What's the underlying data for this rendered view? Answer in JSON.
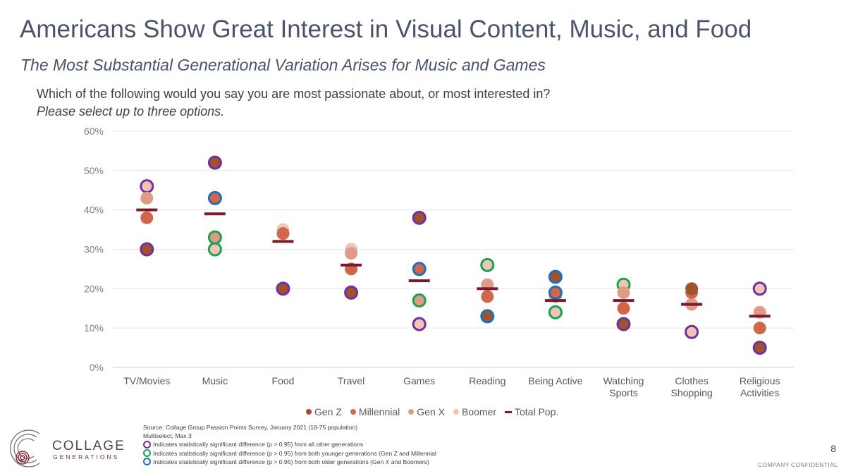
{
  "header": {
    "title": "Americans Show Great Interest in Visual Content, Music, and Food",
    "subtitle": "The Most Substantial Generational Variation Arises for Music and Games",
    "question": "Which of the following would you say you are most passionate about, or most interested in?",
    "instruction": "Please select up to three options."
  },
  "chart_data": {
    "type": "scatter",
    "ylim": [
      0,
      60
    ],
    "yticks": [
      "0%",
      "10%",
      "20%",
      "30%",
      "40%",
      "50%",
      "60%"
    ],
    "grid": true,
    "legend_position": "bottom",
    "categories": [
      [
        "TV/Movies"
      ],
      [
        "Music"
      ],
      [
        "Food"
      ],
      [
        "Travel"
      ],
      [
        "Games"
      ],
      [
        "Reading"
      ],
      [
        "Being Active"
      ],
      [
        "Watching",
        "Sports"
      ],
      [
        "Clothes",
        "Shopping"
      ],
      [
        "Religious",
        "Activities"
      ]
    ],
    "series": [
      {
        "name": "Gen Z",
        "color": "#a0522d",
        "values": [
          30,
          52,
          20,
          19,
          38,
          13,
          23,
          11,
          20,
          5
        ]
      },
      {
        "name": "Millennial",
        "color": "#d0664a",
        "values": [
          38,
          43,
          34,
          25,
          25,
          18,
          19,
          15,
          19,
          10
        ]
      },
      {
        "name": "Gen X",
        "color": "#e09a88",
        "values": [
          43,
          33,
          34,
          29,
          17,
          21,
          18,
          19,
          16,
          14
        ]
      },
      {
        "name": "Boomer",
        "color": "#f0c4b8",
        "values": [
          46,
          30,
          35,
          30,
          11,
          26,
          14,
          21,
          9,
          20
        ]
      }
    ],
    "total": {
      "name": "Total Pop.",
      "color": "#7b1a2c",
      "values": [
        40,
        39,
        32,
        26,
        22,
        20,
        17,
        17,
        16,
        13
      ]
    },
    "significance": [
      {
        "category": 0,
        "series": 0,
        "type": "all"
      },
      {
        "category": 0,
        "series": 3,
        "type": "all"
      },
      {
        "category": 1,
        "series": 0,
        "type": "all"
      },
      {
        "category": 1,
        "series": 1,
        "type": "older"
      },
      {
        "category": 1,
        "series": 2,
        "type": "younger"
      },
      {
        "category": 1,
        "series": 3,
        "type": "younger"
      },
      {
        "category": 2,
        "series": 0,
        "type": "all"
      },
      {
        "category": 3,
        "series": 0,
        "type": "all"
      },
      {
        "category": 4,
        "series": 0,
        "type": "all"
      },
      {
        "category": 4,
        "series": 1,
        "type": "older"
      },
      {
        "category": 4,
        "series": 2,
        "type": "younger"
      },
      {
        "category": 4,
        "series": 3,
        "type": "all"
      },
      {
        "category": 5,
        "series": 3,
        "type": "younger"
      },
      {
        "category": 5,
        "series": 0,
        "type": "older"
      },
      {
        "category": 6,
        "series": 0,
        "type": "older"
      },
      {
        "category": 6,
        "series": 1,
        "type": "older"
      },
      {
        "category": 6,
        "series": 3,
        "type": "younger"
      },
      {
        "category": 7,
        "series": 3,
        "type": "younger"
      },
      {
        "category": 7,
        "series": 0,
        "type": "all"
      },
      {
        "category": 8,
        "series": 3,
        "type": "all"
      },
      {
        "category": 9,
        "series": 3,
        "type": "all"
      },
      {
        "category": 9,
        "series": 0,
        "type": "all"
      }
    ],
    "ring_colors": {
      "all": "#7030a0",
      "younger": "#1aa34a",
      "older": "#1f6fb8"
    }
  },
  "legend": {
    "gen_z": "Gen Z",
    "millennial": "Millennial",
    "gen_x": "Gen X",
    "boomer": "Boomer",
    "total": "Total Pop."
  },
  "notes": {
    "source": "Source: Collage Group Passion Points Survey, January 2021 (18-75 population)",
    "method": "Multiselect, Max 3",
    "sig_all": "Indicates statistically significant difference (p > 0.95) from all other generations",
    "sig_younger": "Indicates statistically significant difference (p > 0.95) from both younger generations (Gen Z and Millennial",
    "sig_older": "Indicates statistically significant difference (p > 0.95) from both older generations (Gen X and Boomers)"
  },
  "brand": {
    "name": "COLLAGE",
    "sub": "GENERATIONS"
  },
  "footer": {
    "page": "8",
    "confidential": "COMPANY CONFIDENTIAL"
  }
}
